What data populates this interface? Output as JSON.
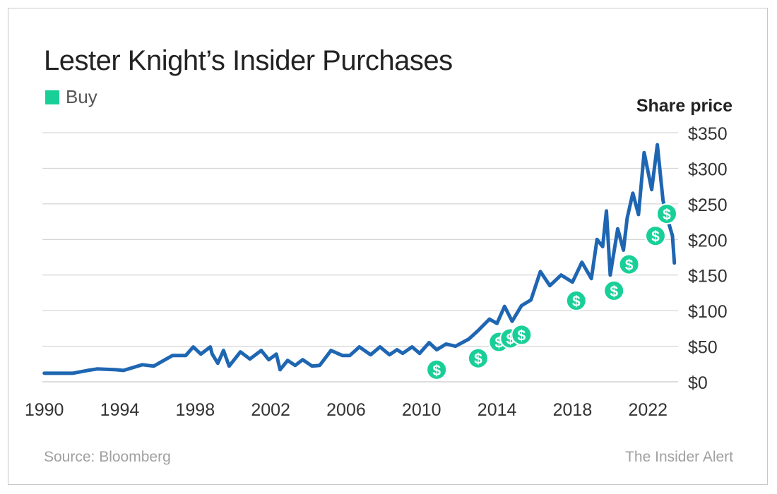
{
  "footer": {
    "source": "Source: Bloomberg",
    "brand": "The Insider Alert"
  },
  "colors": {
    "line": "#1f66b2",
    "buy": "#19cf98",
    "grid": "#cccccc",
    "text": "#333333"
  },
  "chart_data": {
    "type": "line",
    "title": "Lester Knight’s Insider Purchases",
    "ylabel": "Share price",
    "xlabel": "",
    "xlim": [
      1989.9,
      2023.6
    ],
    "ylim": [
      0,
      350
    ],
    "grid": true,
    "legend": {
      "position": "top-left",
      "entries": [
        {
          "label": "Buy",
          "color": "#19cf98"
        }
      ]
    },
    "x_ticks": [
      1990,
      1994,
      1998,
      2002,
      2006,
      2010,
      2014,
      2018,
      2022
    ],
    "x_tick_labels": [
      "1990",
      "1994",
      "1998",
      "2002",
      "2006",
      "2010",
      "2014",
      "2018",
      "2022"
    ],
    "y_ticks": [
      0,
      50,
      100,
      150,
      200,
      250,
      300,
      350
    ],
    "y_tick_labels": [
      "$0",
      "$50",
      "$100",
      "$150",
      "$200",
      "$250",
      "$300",
      "$350"
    ],
    "series": [
      {
        "x": [
          1990.0,
          1991.5,
          1992.3,
          1992.8,
          1993.8,
          1994.2,
          1995.2,
          1995.8,
          1996.8,
          1997.5,
          1997.9,
          1998.3,
          1998.8,
          1998.9,
          1999.2,
          1999.5,
          1999.8,
          2000.4,
          2000.9,
          2001.5,
          2001.9,
          2002.3,
          2002.5,
          2002.9,
          2003.3,
          2003.7,
          2004.2,
          2004.6,
          2005.2,
          2005.8,
          2006.2,
          2006.7,
          2007.3,
          2007.8,
          2008.3,
          2008.7,
          2009.0,
          2009.5,
          2009.9,
          2010.4,
          2010.8,
          2011.3,
          2011.8,
          2012.5,
          2013.0,
          2013.6,
          2014.0,
          2014.4,
          2014.8,
          2015.3,
          2015.8,
          2016.3,
          2016.8,
          2017.4,
          2018.0,
          2018.5,
          2019.0,
          2019.3,
          2019.6,
          2019.8,
          2020.0,
          2020.4,
          2020.7,
          2020.9,
          2021.2,
          2021.5,
          2021.8,
          2022.2,
          2022.5,
          2022.8,
          2023.0,
          2023.3,
          2023.4
        ],
        "y": [
          12,
          12,
          16,
          18,
          17,
          16,
          24,
          22,
          37,
          37,
          49,
          39,
          49,
          39,
          26,
          44,
          22,
          42,
          32,
          44,
          31,
          39,
          17,
          30,
          23,
          31,
          22,
          23,
          44,
          37,
          37,
          49,
          38,
          49,
          38,
          45,
          40,
          49,
          40,
          55,
          45,
          53,
          50,
          60,
          72,
          88,
          82,
          106,
          85,
          107,
          115,
          155,
          135,
          150,
          140,
          168,
          145,
          200,
          190,
          240,
          150,
          215,
          185,
          230,
          265,
          235,
          322,
          270,
          333,
          255,
          232,
          205,
          167
        ]
      }
    ],
    "buys": [
      {
        "x": 2010.8,
        "y": 17
      },
      {
        "x": 2013.0,
        "y": 33
      },
      {
        "x": 2014.1,
        "y": 56
      },
      {
        "x": 2014.7,
        "y": 61
      },
      {
        "x": 2015.3,
        "y": 66
      },
      {
        "x": 2018.2,
        "y": 114
      },
      {
        "x": 2020.2,
        "y": 128
      },
      {
        "x": 2021.0,
        "y": 165
      },
      {
        "x": 2022.4,
        "y": 205
      },
      {
        "x": 2023.0,
        "y": 236
      }
    ]
  }
}
